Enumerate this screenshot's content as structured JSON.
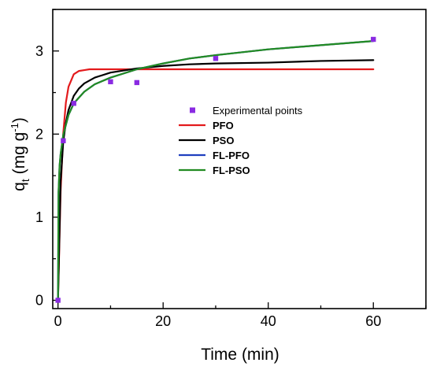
{
  "chart_data": {
    "type": "line",
    "title": "",
    "xlabel": "Time (min)",
    "ylabel": {
      "base": "q",
      "subscript": "t",
      "unit_prefix": " (mg g",
      "superscript": "-1",
      "unit_suffix": ")"
    },
    "xlim": [
      -1,
      70
    ],
    "ylim": [
      -0.1,
      3.5
    ],
    "xticks": [
      0,
      20,
      40,
      60
    ],
    "yticks": [
      0,
      1,
      2,
      3
    ],
    "grid": false,
    "legend_position": "center",
    "series": [
      {
        "name": "Experimental points",
        "kind": "scatter",
        "color": "#8a2be2",
        "marker": "square",
        "x": [
          0,
          1,
          3,
          10,
          15,
          30,
          60
        ],
        "y": [
          0.0,
          1.92,
          2.37,
          2.63,
          2.62,
          2.91,
          3.14
        ]
      },
      {
        "name": "PFO",
        "kind": "line",
        "color": "#e31a1c",
        "bold": true,
        "x": [
          0,
          0.5,
          1,
          1.5,
          2,
          3,
          4,
          5,
          6,
          8,
          10,
          15,
          20,
          30,
          40,
          50,
          60
        ],
        "y": [
          0,
          1.31,
          2.01,
          2.38,
          2.57,
          2.72,
          2.76,
          2.77,
          2.78,
          2.78,
          2.78,
          2.78,
          2.78,
          2.78,
          2.78,
          2.78,
          2.78
        ]
      },
      {
        "name": "PSO",
        "kind": "line",
        "color": "#000000",
        "bold": true,
        "x": [
          0,
          0.5,
          1,
          1.5,
          2,
          3,
          4,
          5,
          7,
          10,
          15,
          20,
          25,
          30,
          40,
          50,
          60
        ],
        "y": [
          0,
          1.43,
          1.91,
          2.14,
          2.29,
          2.46,
          2.55,
          2.61,
          2.68,
          2.74,
          2.79,
          2.82,
          2.84,
          2.85,
          2.86,
          2.88,
          2.89
        ]
      },
      {
        "name": "FL-PFO",
        "kind": "line",
        "color": "#1f3fbf",
        "bold": true,
        "x": [
          0,
          0.1,
          0.3,
          0.5,
          1,
          2,
          3,
          5,
          7,
          10,
          15,
          20,
          25,
          30,
          40,
          50,
          60
        ],
        "y": [
          0,
          1.3,
          1.62,
          1.76,
          1.99,
          2.23,
          2.37,
          2.51,
          2.6,
          2.68,
          2.78,
          2.85,
          2.91,
          2.95,
          3.02,
          3.07,
          3.12
        ]
      },
      {
        "name": "FL-PSO",
        "kind": "line",
        "color": "#228b22",
        "bold": true,
        "x": [
          0,
          0.1,
          0.3,
          0.5,
          1,
          2,
          3,
          5,
          7,
          10,
          15,
          20,
          25,
          30,
          40,
          50,
          60
        ],
        "y": [
          0,
          1.3,
          1.62,
          1.76,
          1.99,
          2.23,
          2.37,
          2.51,
          2.6,
          2.68,
          2.78,
          2.85,
          2.91,
          2.95,
          3.02,
          3.07,
          3.12
        ]
      }
    ]
  }
}
